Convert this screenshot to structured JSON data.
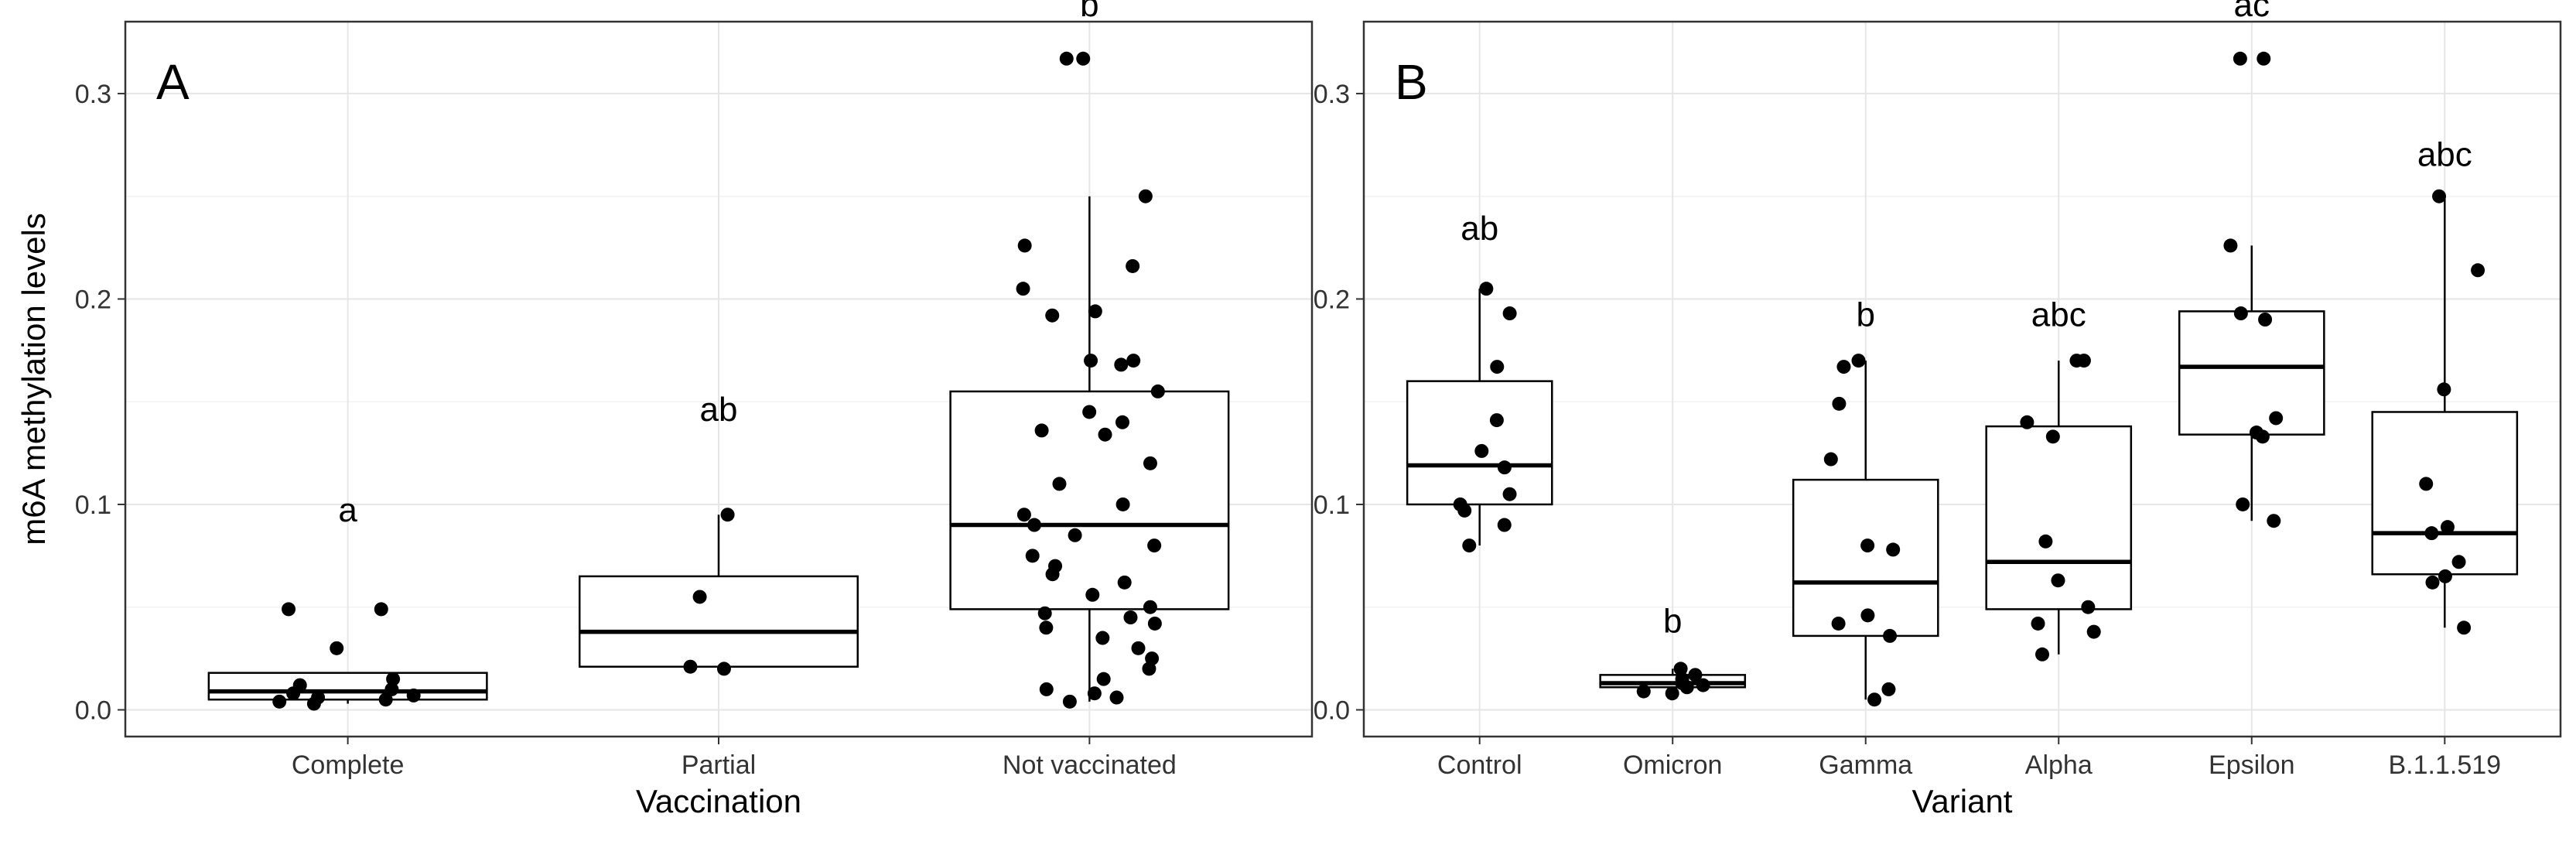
{
  "chart_data": [
    {
      "type": "boxplot",
      "panel_label": "A",
      "xlabel": "Vaccination",
      "ylabel": "m6A methylation levels",
      "ylim": [
        -0.013,
        0.335
      ],
      "yticks": [
        "0.0",
        "0.1",
        "0.2",
        "0.3"
      ],
      "ytick_values": [
        0,
        0.1,
        0.2,
        0.3
      ],
      "grid": true,
      "categories": [
        "Complete",
        "Partial",
        "Not vaccinated"
      ],
      "groups": [
        {
          "category": "Complete",
          "letter": "a",
          "letter_y": 0.097,
          "box": {
            "q1": 0.005,
            "median": 0.009,
            "q3": 0.018,
            "whisker_low": 0.003,
            "whisker_high": 0.018
          },
          "points": [
            0.049,
            0.049,
            0.03,
            0.015,
            0.012,
            0.01,
            0.008,
            0.007,
            0.006,
            0.005,
            0.004,
            0.003
          ]
        },
        {
          "category": "Partial",
          "letter": "ab",
          "letter_y": 0.146,
          "box": {
            "q1": 0.021,
            "median": 0.038,
            "q3": 0.065,
            "whisker_low": 0.02,
            "whisker_high": 0.095
          },
          "points": [
            0.095,
            0.055,
            0.021,
            0.02
          ]
        },
        {
          "category": "Not vaccinated",
          "letter": "b",
          "letter_y": 0.343,
          "box": {
            "q1": 0.049,
            "median": 0.09,
            "q3": 0.155,
            "whisker_low": 0.004,
            "whisker_high": 0.25
          },
          "points": [
            0.317,
            0.317,
            0.25,
            0.226,
            0.216,
            0.205,
            0.194,
            0.192,
            0.17,
            0.17,
            0.168,
            0.155,
            0.145,
            0.14,
            0.136,
            0.134,
            0.12,
            0.11,
            0.1,
            0.095,
            0.09,
            0.085,
            0.08,
            0.075,
            0.07,
            0.066,
            0.062,
            0.056,
            0.05,
            0.047,
            0.045,
            0.042,
            0.04,
            0.035,
            0.03,
            0.025,
            0.02,
            0.015,
            0.01,
            0.008,
            0.006,
            0.004
          ]
        }
      ]
    },
    {
      "type": "boxplot",
      "panel_label": "B",
      "xlabel": "Variant",
      "ylabel": "",
      "ylim": [
        -0.013,
        0.335
      ],
      "yticks": [
        "0.0",
        "0.1",
        "0.2",
        "0.3"
      ],
      "ytick_values": [
        0,
        0.1,
        0.2,
        0.3
      ],
      "grid": true,
      "categories": [
        "Control",
        "Omicron",
        "Gamma",
        "Alpha",
        "Epsilon",
        "B.1.1.519"
      ],
      "groups": [
        {
          "category": "Control",
          "letter": "ab",
          "letter_y": 0.234,
          "box": {
            "q1": 0.1,
            "median": 0.119,
            "q3": 0.16,
            "whisker_low": 0.08,
            "whisker_high": 0.205
          },
          "points": [
            0.205,
            0.193,
            0.167,
            0.141,
            0.126,
            0.118,
            0.105,
            0.1,
            0.097,
            0.09,
            0.08
          ]
        },
        {
          "category": "Omicron",
          "letter": "b",
          "letter_y": 0.043,
          "box": {
            "q1": 0.011,
            "median": 0.013,
            "q3": 0.017,
            "whisker_low": 0.008,
            "whisker_high": 0.02
          },
          "points": [
            0.02,
            0.017,
            0.015,
            0.013,
            0.012,
            0.011,
            0.009,
            0.008
          ]
        },
        {
          "category": "Gamma",
          "letter": "b",
          "letter_y": 0.192,
          "box": {
            "q1": 0.036,
            "median": 0.062,
            "q3": 0.112,
            "whisker_low": 0.005,
            "whisker_high": 0.17
          },
          "points": [
            0.17,
            0.167,
            0.149,
            0.122,
            0.08,
            0.078,
            0.046,
            0.042,
            0.036,
            0.01,
            0.005
          ]
        },
        {
          "category": "Alpha",
          "letter": "abc",
          "letter_y": 0.192,
          "box": {
            "q1": 0.049,
            "median": 0.072,
            "q3": 0.138,
            "whisker_low": 0.027,
            "whisker_high": 0.17
          },
          "points": [
            0.17,
            0.17,
            0.14,
            0.133,
            0.082,
            0.063,
            0.05,
            0.042,
            0.038,
            0.027
          ]
        },
        {
          "category": "Epsilon",
          "letter": "ac",
          "letter_y": 0.343,
          "box": {
            "q1": 0.134,
            "median": 0.167,
            "q3": 0.194,
            "whisker_low": 0.092,
            "whisker_high": 0.226
          },
          "points": [
            0.317,
            0.317,
            0.226,
            0.193,
            0.19,
            0.142,
            0.135,
            0.133,
            0.1,
            0.092
          ]
        },
        {
          "category": "B.1.1.519",
          "letter": "abc",
          "letter_y": 0.27,
          "box": {
            "q1": 0.066,
            "median": 0.086,
            "q3": 0.145,
            "whisker_low": 0.04,
            "whisker_high": 0.25
          },
          "points": [
            0.25,
            0.214,
            0.156,
            0.11,
            0.089,
            0.086,
            0.072,
            0.065,
            0.062,
            0.04
          ]
        }
      ]
    }
  ]
}
